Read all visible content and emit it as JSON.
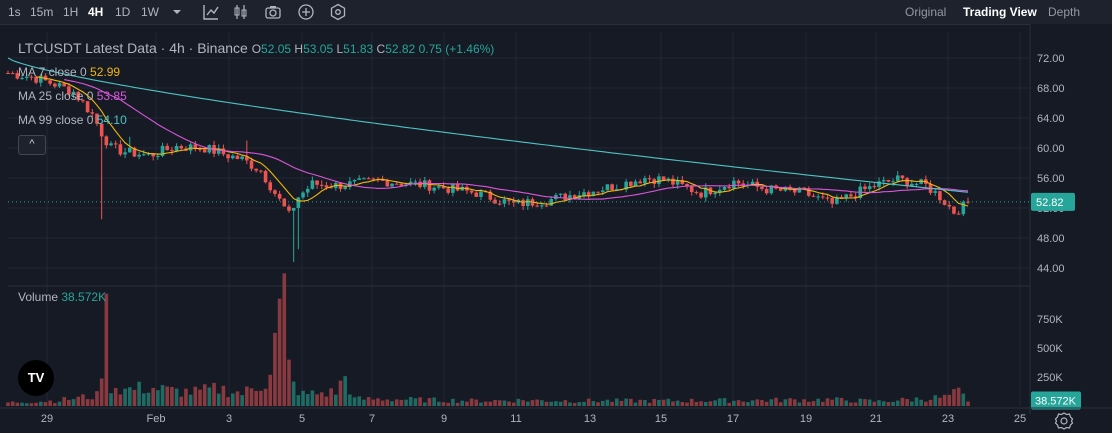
{
  "toolbar": {
    "timeframes": [
      "1s",
      "15m",
      "1H",
      "4H",
      "1D",
      "1W"
    ],
    "active_timeframe": "4H",
    "views": [
      "Original",
      "Trading View",
      "Depth"
    ],
    "active_view": "Trading View"
  },
  "legend": {
    "title": "LTCUSDT Latest Data · 4h · Binance",
    "open_label": "O",
    "open": "52.05",
    "high_label": "H",
    "high": "53.05",
    "low_label": "L",
    "low": "51.83",
    "close_label": "C",
    "close": "52.82",
    "change": "0.75 (+1.46%)",
    "ma7_label": "MA 7 close 0",
    "ma7_value": "52.99",
    "ma25_label": "MA 25 close 0",
    "ma25_value": "53.85",
    "ma99_label": "MA 99 close 0",
    "ma99_value": "54.10",
    "collapse_symbol": "^",
    "volume_label": "Volume",
    "volume_value": "38.572K"
  },
  "logo_text": "TV",
  "colors": {
    "up": "#26a69a",
    "down": "#ef5350",
    "ma7": "#f0b90b",
    "ma25": "#d957d9",
    "ma99": "#4fc3c3",
    "price_label": "#26a69a"
  },
  "chart_data": {
    "type": "candlestick",
    "price_ylim": [
      44,
      72
    ],
    "price_ticks": [
      "72.00",
      "68.00",
      "64.00",
      "60.00",
      "56.00",
      "52.00",
      "48.00",
      "44.00"
    ],
    "volume_ticks": [
      "750K",
      "500K",
      "250K"
    ],
    "x_ticks": [
      "29",
      "Feb",
      "3",
      "5",
      "7",
      "9",
      "11",
      "13",
      "15",
      "17",
      "19",
      "21",
      "23",
      "25"
    ],
    "last_price_label": "52.82",
    "last_volume_label": "38.572K",
    "ohlc_keyframes": [
      [
        0,
        70.0
      ],
      [
        5,
        69.5
      ],
      [
        10,
        68.5
      ],
      [
        14,
        67.5
      ],
      [
        18,
        64.5
      ],
      [
        20,
        62.0
      ],
      [
        22,
        60.0
      ],
      [
        25,
        59.5
      ],
      [
        30,
        59.0
      ],
      [
        36,
        60.2
      ],
      [
        42,
        60.0
      ],
      [
        47,
        59.0
      ],
      [
        50,
        58.5
      ],
      [
        54,
        57.0
      ],
      [
        58,
        53.0
      ],
      [
        60,
        51.0
      ],
      [
        62,
        53.5
      ],
      [
        65,
        55.2
      ],
      [
        70,
        55.0
      ],
      [
        80,
        55.6
      ],
      [
        90,
        55.0
      ],
      [
        100,
        54.0
      ],
      [
        108,
        52.5
      ],
      [
        115,
        53.0
      ],
      [
        122,
        54.0
      ],
      [
        130,
        55.0
      ],
      [
        136,
        56.0
      ],
      [
        140,
        55.8
      ],
      [
        148,
        54.0
      ],
      [
        155,
        55.5
      ],
      [
        162,
        54.5
      ],
      [
        170,
        54.0
      ],
      [
        176,
        52.5
      ],
      [
        182,
        54.2
      ],
      [
        186,
        55.2
      ],
      [
        190,
        55.8
      ],
      [
        196,
        55.0
      ],
      [
        199,
        53.5
      ],
      [
        202,
        51.5
      ],
      [
        204,
        52.2
      ],
      [
        205,
        52.82
      ]
    ],
    "wick_extremes": [
      [
        20,
        50.5
      ],
      [
        26,
        61.5
      ],
      [
        61,
        44.8
      ],
      [
        62,
        46.5
      ],
      [
        51,
        61.0
      ]
    ],
    "volume_keyframes": [
      [
        0,
        30
      ],
      [
        10,
        45
      ],
      [
        19,
        90
      ],
      [
        20,
        380
      ],
      [
        21,
        750
      ],
      [
        22,
        180
      ],
      [
        25,
        140
      ],
      [
        30,
        160
      ],
      [
        35,
        130
      ],
      [
        40,
        120
      ],
      [
        45,
        150
      ],
      [
        50,
        110
      ],
      [
        53,
        160
      ],
      [
        55,
        220
      ],
      [
        56,
        330
      ],
      [
        57,
        560
      ],
      [
        58,
        780
      ],
      [
        59,
        920
      ],
      [
        60,
        330
      ],
      [
        61,
        180
      ],
      [
        63,
        100
      ],
      [
        70,
        120
      ],
      [
        72,
        250
      ],
      [
        74,
        60
      ],
      [
        80,
        60
      ],
      [
        100,
        45
      ],
      [
        110,
        50
      ],
      [
        120,
        45
      ],
      [
        140,
        45
      ],
      [
        160,
        50
      ],
      [
        176,
        55
      ],
      [
        186,
        40
      ],
      [
        200,
        75
      ],
      [
        203,
        120
      ],
      [
        205,
        38.572
      ]
    ],
    "ma7_final": 52.99,
    "ma25_final": 53.85,
    "ma99_final": 54.1
  }
}
